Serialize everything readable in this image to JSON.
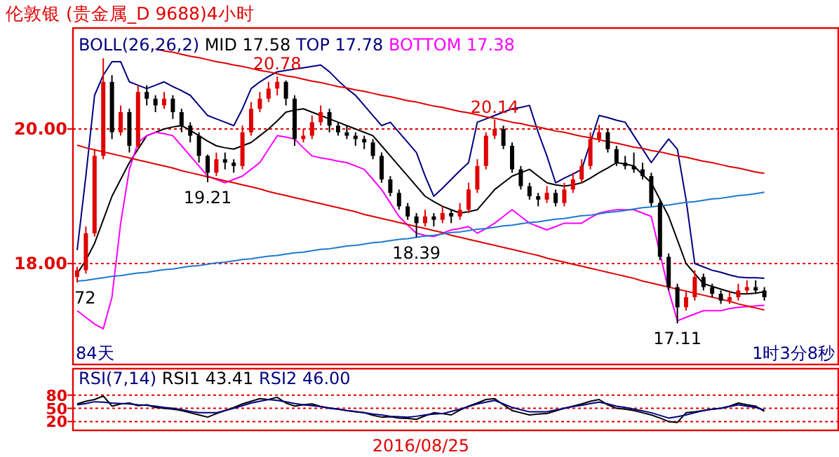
{
  "chart_data": [
    {
      "type": "candlestick",
      "title": "伦敦银  (贵金属_D 9688)4小时",
      "legend_title": "BOLL(26,26,2)",
      "grid": "y",
      "tick_labels": "y",
      "categories": [
        null,
        null,
        null,
        null,
        null,
        null,
        null,
        null,
        null,
        null,
        null,
        null,
        null,
        null,
        null,
        null,
        null,
        null,
        null,
        null,
        null,
        null,
        null,
        null,
        null,
        null,
        null,
        null,
        null,
        null,
        null,
        null,
        null,
        null,
        null,
        null,
        null,
        null,
        null,
        null,
        null,
        null,
        null,
        null,
        null,
        null,
        null,
        null,
        null,
        null,
        null,
        null,
        null,
        null,
        null,
        null,
        null,
        null,
        null,
        null,
        null,
        null,
        null,
        null,
        null,
        null,
        null,
        null,
        null,
        null,
        null,
        null,
        null,
        null,
        null,
        null,
        null,
        null,
        null,
        null
      ],
      "ohlc": [
        [
          17.8,
          17.95,
          17.72,
          17.9
        ],
        [
          17.9,
          18.55,
          17.85,
          18.45
        ],
        [
          18.45,
          19.7,
          18.4,
          19.6
        ],
        [
          19.6,
          21.05,
          19.55,
          20.7
        ],
        [
          20.7,
          20.8,
          19.85,
          19.95
        ],
        [
          19.95,
          20.35,
          19.9,
          20.25
        ],
        [
          20.25,
          20.3,
          19.65,
          19.75
        ],
        [
          19.75,
          20.65,
          19.7,
          20.55
        ],
        [
          20.55,
          20.65,
          20.35,
          20.45
        ],
        [
          20.45,
          20.5,
          20.25,
          20.35
        ],
        [
          20.35,
          20.55,
          20.3,
          20.45
        ],
        [
          20.45,
          20.5,
          20.15,
          20.25
        ],
        [
          20.25,
          20.3,
          19.95,
          20.05
        ],
        [
          20.05,
          20.1,
          19.8,
          19.9
        ],
        [
          19.9,
          19.95,
          19.5,
          19.6
        ],
        [
          19.6,
          19.62,
          19.21,
          19.35
        ],
        [
          19.35,
          19.65,
          19.3,
          19.55
        ],
        [
          19.55,
          19.65,
          19.4,
          19.5
        ],
        [
          19.5,
          19.55,
          19.35,
          19.45
        ],
        [
          19.45,
          20.05,
          19.4,
          19.95
        ],
        [
          19.95,
          20.4,
          19.9,
          20.3
        ],
        [
          20.3,
          20.55,
          20.25,
          20.45
        ],
        [
          20.45,
          20.7,
          20.4,
          20.6
        ],
        [
          20.6,
          20.78,
          20.5,
          20.7
        ],
        [
          20.7,
          20.72,
          20.35,
          20.45
        ],
        [
          20.45,
          20.5,
          19.75,
          19.85
        ],
        [
          19.85,
          20.0,
          19.8,
          19.9
        ],
        [
          19.9,
          20.2,
          19.85,
          20.1
        ],
        [
          20.1,
          20.35,
          20.05,
          20.25
        ],
        [
          20.25,
          20.3,
          19.95,
          20.05
        ],
        [
          20.05,
          20.1,
          19.9,
          19.95
        ],
        [
          19.95,
          20.05,
          19.85,
          19.9
        ],
        [
          19.9,
          19.95,
          19.75,
          19.85
        ],
        [
          19.85,
          19.9,
          19.7,
          19.8
        ],
        [
          19.8,
          19.85,
          19.55,
          19.6
        ],
        [
          19.6,
          19.65,
          19.2,
          19.25
        ],
        [
          19.25,
          19.3,
          19.0,
          19.05
        ],
        [
          19.05,
          19.1,
          18.8,
          18.85
        ],
        [
          18.85,
          18.9,
          18.65,
          18.7
        ],
        [
          18.7,
          18.75,
          18.39,
          18.6
        ],
        [
          18.6,
          18.8,
          18.55,
          18.7
        ],
        [
          18.7,
          18.75,
          18.55,
          18.65
        ],
        [
          18.65,
          18.85,
          18.6,
          18.75
        ],
        [
          18.75,
          18.8,
          18.6,
          18.7
        ],
        [
          18.7,
          18.9,
          18.65,
          18.8
        ],
        [
          18.8,
          19.2,
          18.75,
          19.1
        ],
        [
          19.1,
          19.55,
          19.05,
          19.45
        ],
        [
          19.45,
          19.95,
          19.4,
          19.9
        ],
        [
          19.9,
          20.14,
          19.85,
          20.0
        ],
        [
          20.0,
          20.05,
          19.7,
          19.75
        ],
        [
          19.75,
          19.8,
          19.35,
          19.4
        ],
        [
          19.4,
          19.45,
          19.1,
          19.15
        ],
        [
          19.15,
          19.2,
          18.95,
          19.0
        ],
        [
          19.0,
          19.05,
          18.85,
          18.95
        ],
        [
          18.95,
          19.15,
          18.9,
          19.05
        ],
        [
          19.05,
          19.1,
          18.85,
          18.9
        ],
        [
          18.9,
          19.2,
          18.85,
          19.1
        ],
        [
          19.1,
          19.35,
          19.05,
          19.25
        ],
        [
          19.25,
          19.55,
          19.2,
          19.45
        ],
        [
          19.45,
          19.95,
          19.4,
          19.85
        ],
        [
          19.85,
          20.06,
          19.8,
          19.95
        ],
        [
          19.95,
          20.0,
          19.65,
          19.7
        ],
        [
          19.7,
          19.75,
          19.45,
          19.5
        ],
        [
          19.5,
          19.6,
          19.4,
          19.45
        ],
        [
          19.45,
          19.65,
          19.35,
          19.4
        ],
        [
          19.4,
          19.5,
          19.25,
          19.3
        ],
        [
          19.3,
          19.35,
          18.85,
          18.9
        ],
        [
          18.9,
          18.95,
          18.05,
          18.1
        ],
        [
          18.1,
          18.15,
          17.6,
          17.65
        ],
        [
          17.65,
          17.7,
          17.11,
          17.35
        ],
        [
          17.35,
          17.6,
          17.3,
          17.5
        ],
        [
          17.5,
          17.9,
          17.45,
          17.8
        ],
        [
          17.8,
          17.85,
          17.6,
          17.65
        ],
        [
          17.65,
          17.7,
          17.5,
          17.55
        ],
        [
          17.55,
          17.6,
          17.4,
          17.45
        ],
        [
          17.45,
          17.6,
          17.4,
          17.5
        ],
        [
          17.5,
          17.7,
          17.45,
          17.6
        ],
        [
          17.6,
          17.75,
          17.55,
          17.65
        ],
        [
          17.65,
          17.75,
          17.55,
          17.6
        ],
        [
          17.6,
          17.65,
          17.45,
          17.5
        ]
      ],
      "series": [
        {
          "name": "MID  17.58",
          "type": "line",
          "color": "#000000",
          "values": [
            17.85,
            18.05,
            18.3,
            18.65,
            19.0,
            19.25,
            19.5,
            19.7,
            19.9,
            19.95,
            20.0,
            20.03,
            20.05,
            19.98,
            19.9,
            19.82,
            19.75,
            19.72,
            19.7,
            19.75,
            19.8,
            19.9,
            20.0,
            20.12,
            20.25,
            20.28,
            20.3,
            20.25,
            20.2,
            20.15,
            20.1,
            20.05,
            20.0,
            19.95,
            19.9,
            19.75,
            19.6,
            19.45,
            19.3,
            19.15,
            19.0,
            18.92,
            18.85,
            18.8,
            18.75,
            18.77,
            18.8,
            18.95,
            19.1,
            19.2,
            19.3,
            19.35,
            19.4,
            19.3,
            19.2,
            19.17,
            19.15,
            19.17,
            19.2,
            19.27,
            19.35,
            19.42,
            19.5,
            19.48,
            19.45,
            19.32,
            19.2,
            18.95,
            18.7,
            18.35,
            18.0,
            17.85,
            17.7,
            17.66,
            17.62,
            17.58,
            17.55,
            17.55,
            17.56,
            17.58
          ]
        },
        {
          "name": "TOP  17.78",
          "type": "line",
          "color": "#000080",
          "values": [
            18.2,
            19.3,
            20.5,
            20.8,
            21.0,
            21.0,
            20.7,
            20.65,
            20.6,
            20.65,
            20.7,
            20.63,
            20.57,
            20.5,
            20.35,
            20.2,
            20.15,
            20.1,
            20.05,
            20.3,
            20.6,
            20.7,
            20.78,
            20.85,
            20.87,
            20.89,
            20.91,
            20.93,
            20.95,
            20.85,
            20.72,
            20.6,
            20.5,
            20.35,
            20.2,
            20.05,
            20.1,
            19.95,
            19.8,
            19.65,
            19.3,
            19.0,
            19.12,
            19.25,
            19.38,
            19.5,
            20.1,
            20.15,
            20.2,
            20.25,
            20.3,
            20.32,
            20.35,
            19.95,
            19.6,
            19.2,
            19.27,
            19.33,
            19.4,
            19.8,
            20.2,
            20.17,
            20.13,
            20.1,
            19.9,
            19.7,
            19.5,
            19.68,
            19.85,
            19.7,
            18.95,
            18.0,
            17.95,
            17.9,
            17.87,
            17.83,
            17.8,
            17.79,
            17.79,
            17.78
          ]
        },
        {
          "name": "BOTTOM  17.38",
          "type": "line",
          "color": "#ff00ff",
          "values": [
            17.3,
            17.2,
            17.1,
            17.03,
            17.5,
            18.6,
            19.4,
            19.8,
            19.9,
            19.95,
            19.93,
            19.9,
            19.75,
            19.6,
            19.45,
            19.3,
            19.25,
            19.2,
            19.25,
            19.3,
            19.4,
            19.5,
            19.7,
            19.9,
            19.88,
            19.85,
            19.72,
            19.6,
            19.57,
            19.55,
            19.52,
            19.5,
            19.45,
            19.4,
            19.25,
            19.1,
            18.9,
            18.7,
            18.57,
            18.45,
            18.42,
            18.4,
            18.45,
            18.5,
            18.52,
            18.55,
            18.45,
            18.52,
            18.6,
            18.7,
            18.8,
            18.7,
            18.6,
            18.55,
            18.5,
            18.55,
            18.6,
            18.6,
            18.6,
            18.68,
            18.75,
            18.78,
            18.8,
            18.8,
            18.8,
            18.75,
            18.7,
            18.15,
            17.6,
            17.15,
            17.2,
            17.25,
            17.3,
            17.3,
            17.3,
            17.33,
            17.35,
            17.36,
            17.37,
            17.38
          ]
        },
        {
          "type": "line",
          "color": "#e00000",
          "values": [
            null,
            null,
            null,
            null,
            null,
            null,
            null,
            null,
            null,
            21.19,
            21.16,
            21.14,
            21.11,
            21.08,
            21.06,
            21.03,
            21.0,
            20.98,
            20.95,
            20.93,
            20.9,
            20.87,
            20.85,
            20.82,
            20.79,
            20.77,
            20.74,
            20.71,
            20.69,
            20.66,
            20.63,
            20.61,
            20.58,
            20.56,
            20.53,
            20.5,
            20.48,
            20.45,
            20.42,
            20.4,
            20.37,
            20.34,
            20.32,
            20.29,
            20.26,
            20.24,
            20.21,
            20.18,
            20.16,
            20.13,
            20.1,
            20.08,
            20.05,
            20.03,
            20.0,
            19.97,
            19.95,
            19.92,
            19.89,
            19.87,
            19.84,
            19.81,
            19.79,
            19.76,
            19.73,
            19.71,
            19.68,
            19.66,
            19.63,
            19.6,
            19.58,
            19.55,
            19.52,
            19.5,
            19.47,
            19.44,
            19.42,
            19.39,
            19.36,
            19.34
          ]
        },
        {
          "type": "line",
          "color": "#e00000",
          "values": [
            19.76,
            19.72,
            19.69,
            19.66,
            19.63,
            19.6,
            19.57,
            19.54,
            19.51,
            19.48,
            19.45,
            19.42,
            19.38,
            19.35,
            19.32,
            19.29,
            19.26,
            19.23,
            19.2,
            19.17,
            19.14,
            19.11,
            19.07,
            19.04,
            19.01,
            18.98,
            18.95,
            18.92,
            18.89,
            18.86,
            18.83,
            18.8,
            18.77,
            18.73,
            18.7,
            18.67,
            18.64,
            18.61,
            18.58,
            18.55,
            18.52,
            18.49,
            18.46,
            18.42,
            18.39,
            18.36,
            18.33,
            18.3,
            18.27,
            18.24,
            18.21,
            18.18,
            18.15,
            18.12,
            18.08,
            18.05,
            18.02,
            17.99,
            17.96,
            17.93,
            17.9,
            17.87,
            17.84,
            17.81,
            17.78,
            17.74,
            17.71,
            17.68,
            17.65,
            17.62,
            17.59,
            17.56,
            17.53,
            17.5,
            17.47,
            17.44,
            17.4,
            17.37,
            17.34,
            17.31
          ]
        },
        {
          "type": "line",
          "color": "#1e78d0",
          "values": [
            17.74,
            17.75,
            17.77,
            17.79,
            17.81,
            17.82,
            17.84,
            17.86,
            17.87,
            17.89,
            17.91,
            17.92,
            17.94,
            17.96,
            17.97,
            17.99,
            18.01,
            18.02,
            18.04,
            18.06,
            18.07,
            18.09,
            18.11,
            18.12,
            18.14,
            18.16,
            18.17,
            18.19,
            18.21,
            18.22,
            18.24,
            18.26,
            18.27,
            18.29,
            18.31,
            18.32,
            18.34,
            18.36,
            18.37,
            18.39,
            18.41,
            18.42,
            18.44,
            18.46,
            18.47,
            18.49,
            18.51,
            18.52,
            18.54,
            18.56,
            18.57,
            18.59,
            18.61,
            18.62,
            18.64,
            18.66,
            18.67,
            18.69,
            18.71,
            18.72,
            18.74,
            18.76,
            18.77,
            18.79,
            18.81,
            18.83,
            18.84,
            18.86,
            18.87,
            18.89,
            18.91,
            18.92,
            18.94,
            18.96,
            18.97,
            18.99,
            19.01,
            19.02,
            19.04,
            19.06
          ]
        }
      ],
      "ylim": [
        16.5,
        21.5
      ],
      "yticks": [
        {
          "value": 20,
          "label": "20.00"
        },
        {
          "value": 18,
          "label": "18.00"
        }
      ],
      "annotations": [
        {
          "text": "20.78",
          "y": 20.78
        },
        {
          "text": "19.21",
          "y": 19.21
        },
        {
          "text": "18.39",
          "y": 18.39
        },
        {
          "text": "20.14",
          "y": 20.14
        },
        {
          "text": "17.11",
          "y": 17.11
        },
        {
          "text": "72",
          "y": 17.72
        },
        "84天",
        "1时3分8秒"
      ]
    },
    {
      "type": "line",
      "legend_title": "RSI(7,14)",
      "grid": "y",
      "categories": [
        null,
        null,
        null,
        null,
        null,
        null,
        null,
        null,
        null,
        null,
        null,
        null,
        null,
        null,
        null,
        null,
        null,
        null,
        null,
        null,
        null,
        null,
        null,
        null,
        null,
        null,
        null,
        null,
        null,
        null,
        null,
        null,
        null,
        null,
        null,
        null,
        null,
        null,
        null,
        null,
        null,
        null,
        null,
        null,
        null,
        null,
        null,
        null,
        null,
        null,
        null,
        null,
        null,
        null,
        null,
        null,
        null,
        null,
        null,
        null,
        null,
        null,
        null,
        null,
        null,
        null,
        null,
        null,
        null,
        null,
        null,
        null,
        null,
        null,
        null,
        null,
        null,
        null,
        null,
        null
      ],
      "series": [
        {
          "name": "RSI1  43.41",
          "color": "#000000",
          "values": [
            60,
            66,
            70,
            78,
            55,
            60,
            62,
            56,
            58,
            52,
            50,
            48,
            45,
            40,
            35,
            30,
            38,
            45,
            52,
            60,
            66,
            72,
            70,
            75,
            62,
            55,
            58,
            60,
            54,
            50,
            48,
            45,
            42,
            40,
            34,
            30,
            31,
            28,
            27,
            25,
            33,
            40,
            38,
            35,
            46,
            55,
            62,
            70,
            72,
            58,
            45,
            40,
            35,
            37,
            38,
            44,
            50,
            55,
            60,
            66,
            70,
            58,
            50,
            48,
            45,
            40,
            35,
            28,
            20,
            18,
            40,
            42,
            45,
            48,
            50,
            55,
            62,
            58,
            55,
            43
          ]
        },
        {
          "name": "RSI2  46.00",
          "color": "#000080",
          "values": [
            58,
            61,
            65,
            64,
            62,
            61,
            60,
            58,
            57,
            55,
            52,
            50,
            47,
            43,
            40,
            40,
            40,
            45,
            50,
            56,
            62,
            66,
            70,
            68,
            65,
            61,
            58,
            56,
            54,
            51,
            48,
            45,
            43,
            40,
            37,
            35,
            32,
            31,
            30,
            32,
            35,
            37,
            38,
            43,
            48,
            54,
            60,
            64,
            68,
            60,
            52,
            47,
            42,
            42,
            42,
            46,
            50,
            54,
            57,
            61,
            64,
            60,
            55,
            52,
            48,
            44,
            40,
            34,
            28,
            31,
            35,
            40,
            45,
            48,
            50,
            54,
            58,
            55,
            52,
            46
          ]
        }
      ],
      "ylim": [
        0,
        140
      ],
      "yticks": [
        80,
        50,
        20
      ],
      "annotations": [
        "2016/08/25"
      ]
    }
  ]
}
